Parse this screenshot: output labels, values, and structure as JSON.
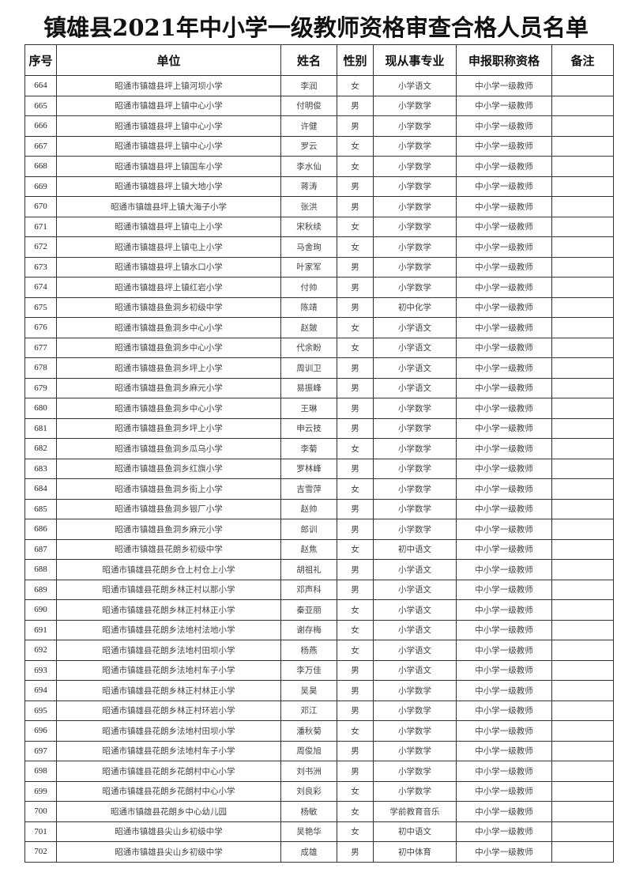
{
  "title": "镇雄县2021年中小学一级教师资格审查合格人员名单",
  "columns": [
    "序号",
    "单位",
    "姓名",
    "性别",
    "现从事专业",
    "申报职称资格",
    "备注"
  ],
  "rows": [
    [
      "664",
      "昭通市镇雄县坪上镇河坝小学",
      "李润",
      "女",
      "小学语文",
      "中小学一级教师",
      ""
    ],
    [
      "665",
      "昭通市镇雄县坪上镇中心小学",
      "付明俊",
      "男",
      "小学数学",
      "中小学一级教师",
      ""
    ],
    [
      "666",
      "昭通市镇雄县坪上镇中心小学",
      "许健",
      "男",
      "小学数学",
      "中小学一级教师",
      ""
    ],
    [
      "667",
      "昭通市镇雄县坪上镇中心小学",
      "罗云",
      "女",
      "小学数学",
      "中小学一级教师",
      ""
    ],
    [
      "668",
      "昭通市镇雄县坪上镇国车小学",
      "李水仙",
      "女",
      "小学数学",
      "中小学一级教师",
      ""
    ],
    [
      "669",
      "昭通市镇雄县坪上镇大地小学",
      "蒋涛",
      "男",
      "小学数学",
      "中小学一级教师",
      ""
    ],
    [
      "670",
      "昭通市镇雄县坪上镇大海子小学",
      "张洪",
      "男",
      "小学数学",
      "中小学一级教师",
      ""
    ],
    [
      "671",
      "昭通市镇雄县坪上镇屯上小学",
      "宋秋续",
      "女",
      "小学数学",
      "中小学一级教师",
      ""
    ],
    [
      "672",
      "昭通市镇雄县坪上镇屯上小学",
      "马舍珣",
      "女",
      "小学数学",
      "中小学一级教师",
      ""
    ],
    [
      "673",
      "昭通市镇雄县坪上镇水口小学",
      "叶家军",
      "男",
      "小学数学",
      "中小学一级教师",
      ""
    ],
    [
      "674",
      "昭通市镇雄县坪上镇红岩小学",
      "付帅",
      "男",
      "小学数学",
      "中小学一级教师",
      ""
    ],
    [
      "675",
      "昭通市镇雄县鱼洞乡初级中学",
      "陈靖",
      "男",
      "初中化学",
      "中小学一级教师",
      ""
    ],
    [
      "676",
      "昭通市镇雄县鱼洞乡中心小学",
      "赵皴",
      "女",
      "小学语文",
      "中小学一级教师",
      ""
    ],
    [
      "677",
      "昭通市镇雄县鱼洞乡中心小学",
      "代余盼",
      "女",
      "小学语文",
      "中小学一级教师",
      ""
    ],
    [
      "678",
      "昭通市镇雄县鱼洞乡坪上小学",
      "周训卫",
      "男",
      "小学语文",
      "中小学一级教师",
      ""
    ],
    [
      "679",
      "昭通市镇雄县鱼洞乡麻元小学",
      "易振峰",
      "男",
      "小学语文",
      "中小学一级教师",
      ""
    ],
    [
      "680",
      "昭通市镇雄县鱼洞乡中心小学",
      "王琳",
      "男",
      "小学数学",
      "中小学一级教师",
      ""
    ],
    [
      "681",
      "昭通市镇雄县鱼洞乡坪上小学",
      "申云技",
      "男",
      "小学数学",
      "中小学一级教师",
      ""
    ],
    [
      "682",
      "昭通市镇雄县鱼洞乡瓜乌小学",
      "李菊",
      "女",
      "小学数学",
      "中小学一级教师",
      ""
    ],
    [
      "683",
      "昭通市镇雄县鱼洞乡红旗小学",
      "罗林峰",
      "男",
      "小学数学",
      "中小学一级教师",
      ""
    ],
    [
      "684",
      "昭通市镇雄县鱼洞乡街上小学",
      "吉雪萍",
      "女",
      "小学数学",
      "中小学一级教师",
      ""
    ],
    [
      "685",
      "昭通市镇雄县鱼洞乡银厂小学",
      "赵帅",
      "男",
      "小学数学",
      "中小学一级教师",
      ""
    ],
    [
      "686",
      "昭通市镇雄县鱼洞乡麻元小学",
      "郎训",
      "男",
      "小学数学",
      "中小学一级教师",
      ""
    ],
    [
      "687",
      "昭通市镇雄县花朗乡初级中学",
      "赵焦",
      "女",
      "初中语文",
      "中小学一级教师",
      ""
    ],
    [
      "688",
      "昭通市镇雄县花朗乡仓上村仓上小学",
      "胡祖礼",
      "男",
      "小学语文",
      "中小学一级教师",
      ""
    ],
    [
      "689",
      "昭通市镇雄县花朗乡林正村以那小学",
      "邓声科",
      "男",
      "小学语文",
      "中小学一级教师",
      ""
    ],
    [
      "690",
      "昭通市镇雄县花朗乡林正村林正小学",
      "秦亚丽",
      "女",
      "小学语文",
      "中小学一级教师",
      ""
    ],
    [
      "691",
      "昭通市镇雄县花朗乡法地村法地小学",
      "谢存梅",
      "女",
      "小学语文",
      "中小学一级教师",
      ""
    ],
    [
      "692",
      "昭通市镇雄县花朗乡法地村田坝小学",
      "杨燕",
      "女",
      "小学语文",
      "中小学一级教师",
      ""
    ],
    [
      "693",
      "昭通市镇雄县花朗乡法地村车子小学",
      "李万佳",
      "男",
      "小学语文",
      "中小学一级教师",
      ""
    ],
    [
      "694",
      "昭通市镇雄县花朗乡林正村林正小学",
      "吴昊",
      "男",
      "小学数学",
      "中小学一级教师",
      ""
    ],
    [
      "695",
      "昭通市镇雄县花朗乡林正村环岩小学",
      "邓江",
      "男",
      "小学数学",
      "中小学一级教师",
      ""
    ],
    [
      "696",
      "昭通市镇雄县花朗乡法地村田坝小学",
      "潘秋菊",
      "女",
      "小学数学",
      "中小学一级教师",
      ""
    ],
    [
      "697",
      "昭通市镇雄县花朗乡法地村车子小学",
      "周俊旭",
      "男",
      "小学数学",
      "中小学一级教师",
      ""
    ],
    [
      "698",
      "昭通市镇雄县花朗乡花朗村中心小学",
      "刘书洲",
      "男",
      "小学数学",
      "中小学一级教师",
      ""
    ],
    [
      "699",
      "昭通市镇雄县花朗乡花朗村中心小学",
      "刘良彩",
      "女",
      "小学数学",
      "中小学一级教师",
      ""
    ],
    [
      "700",
      "昭通市镇雄县花朗乡中心幼儿园",
      "杨敏",
      "女",
      "学前教育音乐",
      "中小学一级教师",
      ""
    ],
    [
      "701",
      "昭通市镇雄县尖山乡初级中学",
      "吴艳华",
      "女",
      "初中语文",
      "中小学一级教师",
      ""
    ],
    [
      "702",
      "昭通市镇雄县尖山乡初级中学",
      "成雄",
      "男",
      "初中体育",
      "中小学一级教师",
      ""
    ]
  ]
}
